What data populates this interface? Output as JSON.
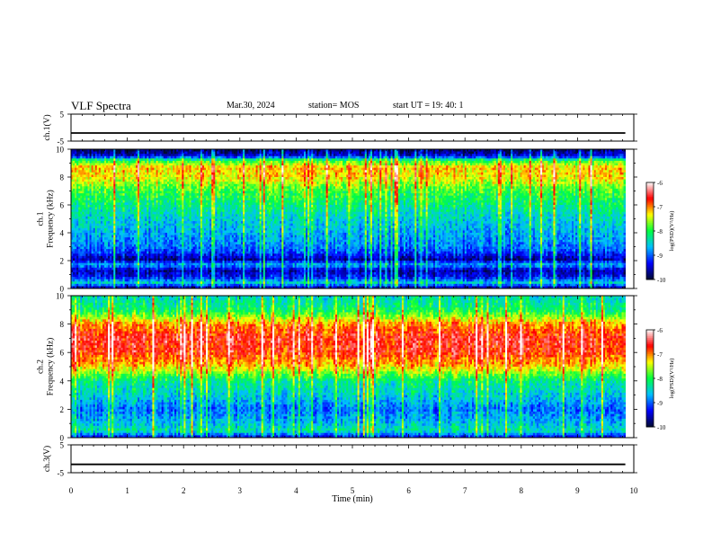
{
  "header": {
    "title": "VLF Spectra",
    "date": "Mar.30, 2024",
    "station": "station= MOS",
    "start_label": "start  UT =",
    "start_time": "19: 40: 1"
  },
  "chart_data": [
    {
      "type": "line",
      "panel": "ch1-waveform",
      "ylabel": "ch.1(V)",
      "ylim": [
        -5,
        5
      ],
      "yticks": [
        "5",
        "-5"
      ],
      "xlim": [
        0,
        10
      ],
      "series": [
        {
          "x": [
            0,
            9.85
          ],
          "values": [
            -2,
            -2
          ]
        }
      ]
    },
    {
      "type": "heatmap",
      "panel": "ch1-spectrogram",
      "ylabel": "ch.1\nFrequency (kHz)",
      "ylim": [
        0,
        10
      ],
      "yticks": [
        "0",
        "2",
        "4",
        "6",
        "8",
        "10"
      ],
      "xlim": [
        0,
        10
      ],
      "data_extent_x": [
        0,
        9.85
      ],
      "colorbar": {
        "label": "log(PSD)(V²/Hz)",
        "range": [
          -10,
          -6
        ],
        "ticks": [
          "-6",
          "-7",
          "-8",
          "-9",
          "-10"
        ]
      },
      "mean_profile": {
        "frequency_khz": [
          0,
          0.4,
          0.8,
          1.3,
          1.7,
          2.1,
          2.5,
          3,
          4,
          5,
          6,
          7,
          8,
          8.7,
          9.2,
          9.5,
          10
        ],
        "log_psd": [
          -9.8,
          -8.5,
          -9.3,
          -9.6,
          -8.7,
          -9.7,
          -9.2,
          -8.9,
          -8.7,
          -8.5,
          -8.2,
          -7.9,
          -7.3,
          -7.2,
          -8.0,
          -9.4,
          -9.9
        ]
      }
    },
    {
      "type": "heatmap",
      "panel": "ch2-spectrogram",
      "ylabel": "ch.2\nFrequency (kHz)",
      "ylim": [
        0,
        10
      ],
      "yticks": [
        "0",
        "2",
        "4",
        "6",
        "8",
        "10"
      ],
      "xlim": [
        0,
        10
      ],
      "data_extent_x": [
        0,
        9.85
      ],
      "colorbar": {
        "label": "log(PSD)(V²/Hz)",
        "range": [
          -10,
          -6
        ],
        "ticks": [
          "-6",
          "-7",
          "-8",
          "-9",
          "-10"
        ]
      },
      "mean_profile": {
        "frequency_khz": [
          0,
          0.5,
          1,
          2,
          3,
          4,
          4.5,
          5,
          6,
          7,
          8,
          8.5,
          9,
          10
        ],
        "log_psd": [
          -9.4,
          -8.3,
          -8.6,
          -8.9,
          -8.5,
          -8.2,
          -7.7,
          -7.2,
          -6.7,
          -6.6,
          -7.0,
          -7.6,
          -8.1,
          -8.4
        ]
      }
    },
    {
      "type": "line",
      "panel": "ch3-waveform",
      "ylabel": "ch.3(V)",
      "ylim": [
        -5,
        5
      ],
      "yticks": [
        "5",
        "-5"
      ],
      "xlim": [
        0,
        10
      ],
      "xlabel": "Time  (min)",
      "xticks": [
        "0",
        "1",
        "2",
        "3",
        "4",
        "5",
        "6",
        "7",
        "8",
        "9",
        "10"
      ],
      "series": [
        {
          "x": [
            0,
            9.85
          ],
          "values": [
            -2,
            -2
          ]
        }
      ]
    }
  ],
  "colors": {
    "colormap": [
      "#000a30",
      "#0000ff",
      "#00c0ff",
      "#00ff40",
      "#ffff00",
      "#ff0000",
      "#ffffff"
    ]
  }
}
